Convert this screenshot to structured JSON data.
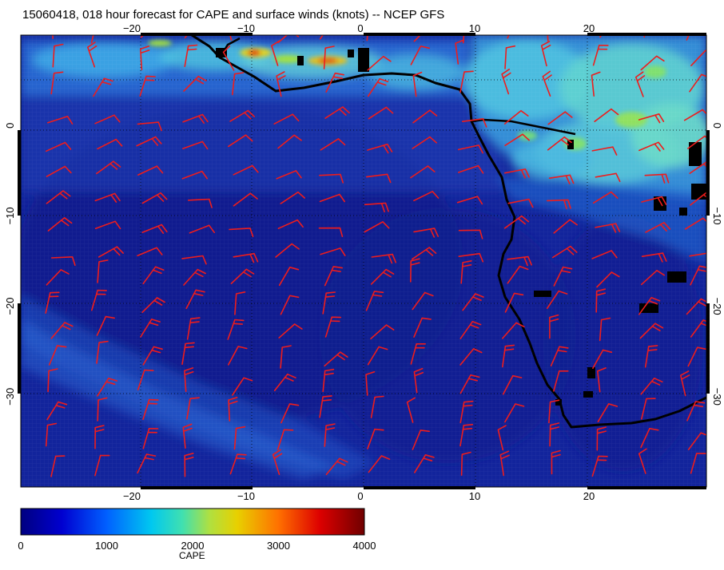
{
  "title": "15060418, 018 hour forecast for CAPE and surface winds (knots) -- NCEP GFS",
  "map": {
    "lon_range": [
      -30,
      30
    ],
    "lat_range": [
      -40,
      10
    ],
    "lon_ticks": [
      -20,
      -10,
      0,
      10,
      20
    ],
    "lat_ticks": [
      0,
      -10,
      -20,
      -30
    ],
    "lon_tick_labels": [
      "−20",
      "−10",
      "0",
      "10",
      "20"
    ],
    "lat_tick_labels": [
      "0",
      "−10",
      "−20",
      "−30"
    ],
    "wind_barb_color": "#ee1c1c",
    "coast_color": "#000000",
    "ocean_base_color": "#10239a"
  },
  "colorbar": {
    "label": "CAPE",
    "min": 0,
    "max": 4000,
    "ticks": [
      "0",
      "1000",
      "2000",
      "3000",
      "4000"
    ],
    "colors": [
      "#000080",
      "#0000c8",
      "#0050ff",
      "#00b4ff",
      "#20e0c0",
      "#a0e040",
      "#e0d000",
      "#ff8000",
      "#e00000",
      "#800000"
    ]
  }
}
